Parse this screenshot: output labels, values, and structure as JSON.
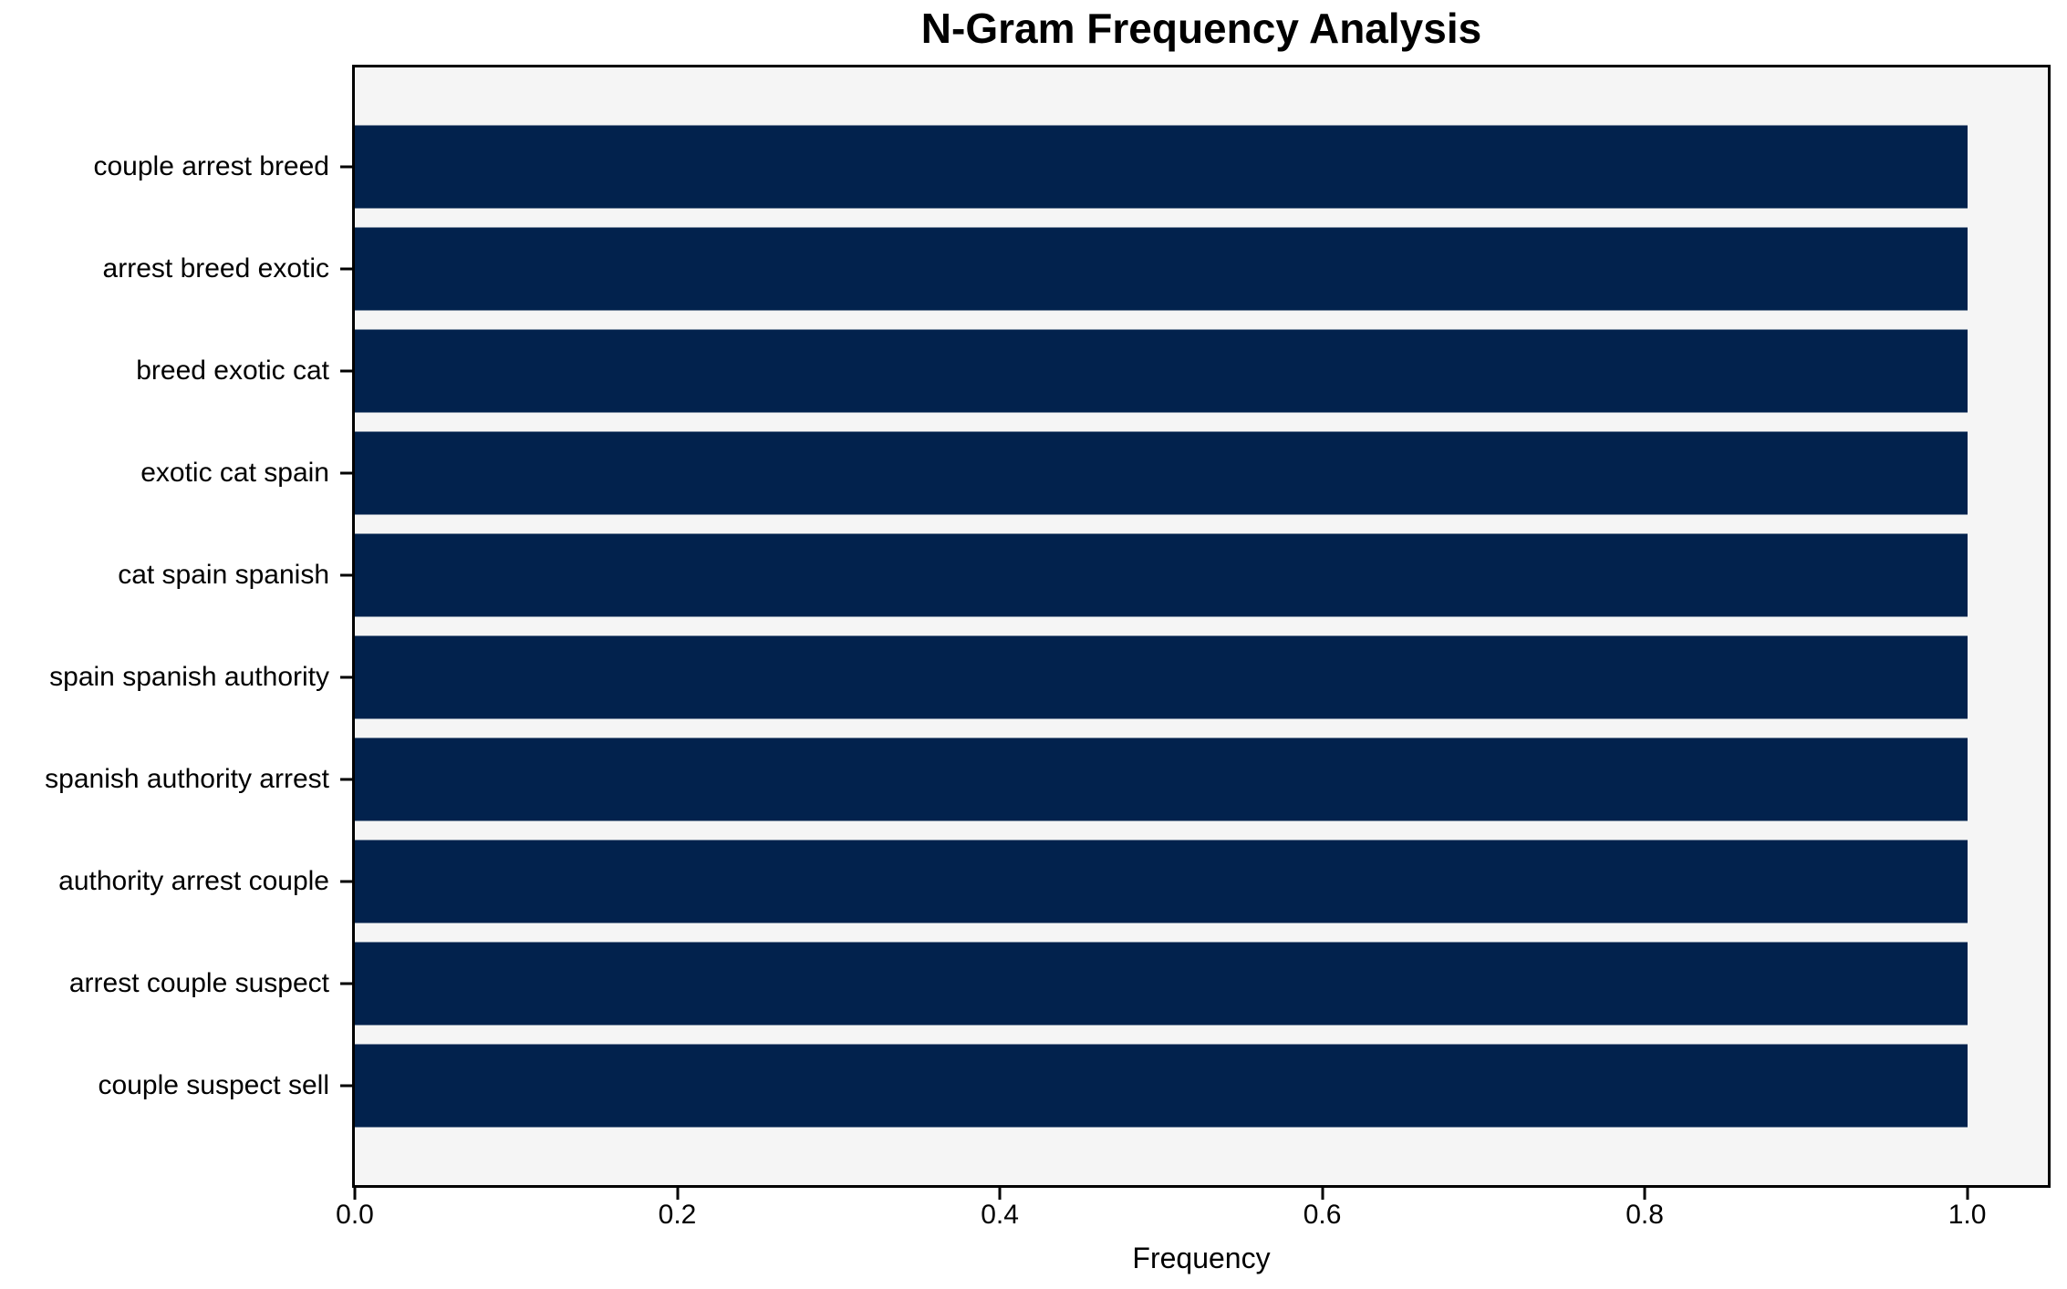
{
  "chart_data": {
    "type": "bar",
    "orientation": "horizontal",
    "title": "N-Gram Frequency Analysis",
    "xlabel": "Frequency",
    "ylabel": "",
    "categories": [
      "couple arrest breed",
      "arrest breed exotic",
      "breed exotic cat",
      "exotic cat spain",
      "cat spain spanish",
      "spain spanish authority",
      "spanish authority arrest",
      "authority arrest couple",
      "arrest couple suspect",
      "couple suspect sell"
    ],
    "values": [
      1.0,
      1.0,
      1.0,
      1.0,
      1.0,
      1.0,
      1.0,
      1.0,
      1.0,
      1.0
    ],
    "xlim": [
      0,
      1.05
    ],
    "xticks": [
      0.0,
      0.2,
      0.4,
      0.6,
      0.8,
      1.0
    ],
    "xtick_labels": [
      "0.0",
      "0.2",
      "0.4",
      "0.6",
      "0.8",
      "1.0"
    ],
    "grid": false,
    "legend": null,
    "colors": {
      "bar": "#02224d",
      "plot_bg": "#f5f5f5",
      "figure_bg": "#ffffff",
      "axis": "#000000",
      "text": "#000000"
    }
  }
}
